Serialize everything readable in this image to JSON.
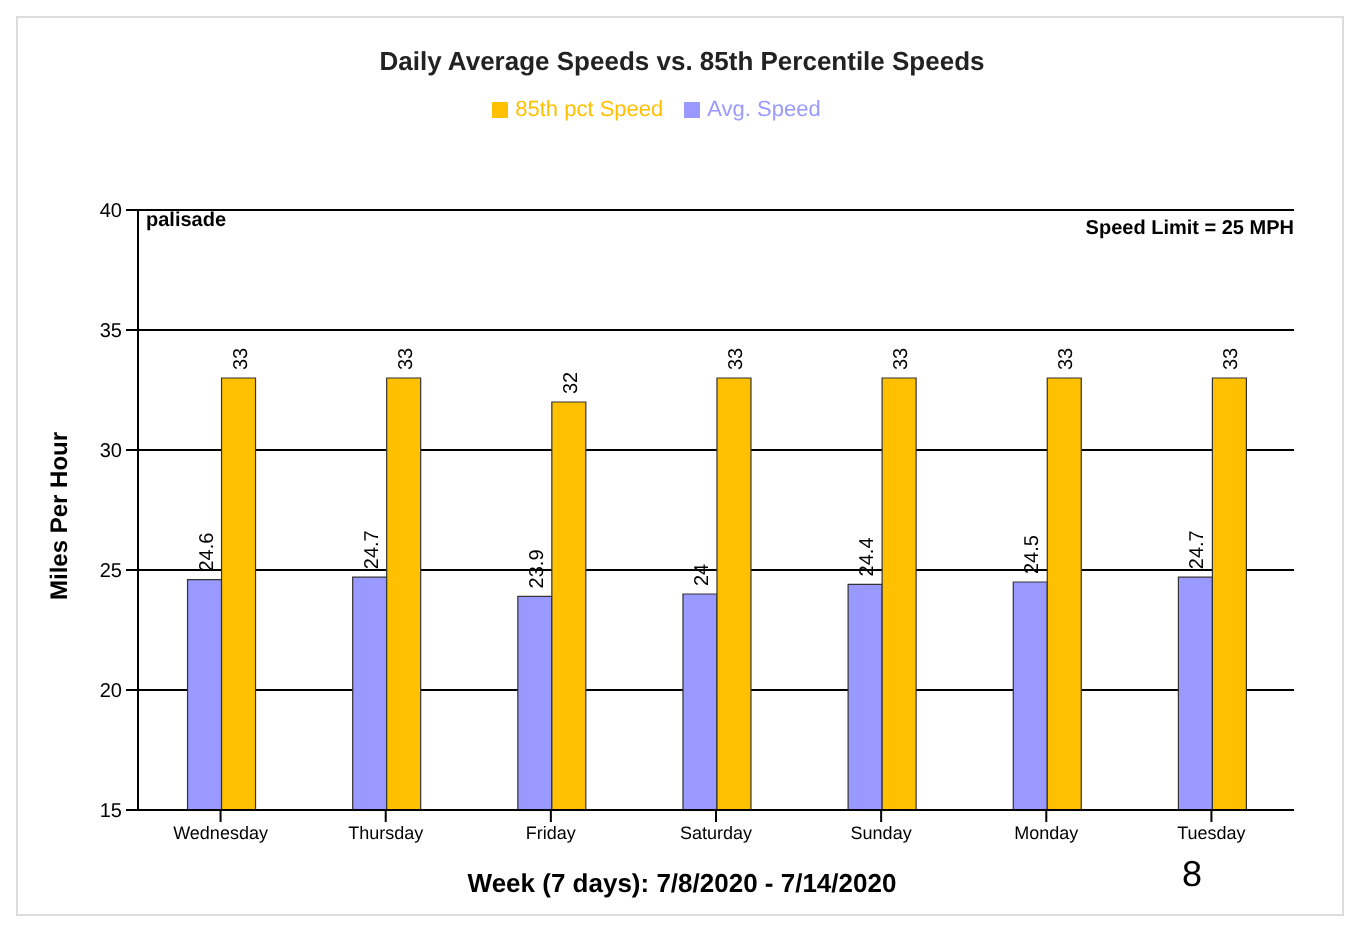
{
  "chart_data": {
    "type": "bar",
    "title": "Daily Average Speeds vs. 85th Percentile Speeds",
    "xlabel": "Week (7 days): 7/8/2020 - 7/14/2020",
    "ylabel": "Miles Per Hour",
    "annotations": [
      "palisade",
      "Speed Limit = 25 MPH",
      "8"
    ],
    "categories": [
      "Wednesday",
      "Thursday",
      "Friday",
      "Saturday",
      "Sunday",
      "Monday",
      "Tuesday"
    ],
    "series": [
      {
        "name": "Avg. Speed",
        "color": "#9999ff",
        "values": [
          24.6,
          24.7,
          23.9,
          24,
          24.4,
          24.5,
          24.7
        ]
      },
      {
        "name": "85th pct Speed",
        "color": "#ffc000",
        "values": [
          33,
          33,
          32,
          33,
          33,
          33,
          33
        ]
      }
    ],
    "ylim": [
      15,
      40
    ],
    "yticks": [
      15,
      20,
      25,
      30,
      35,
      40
    ],
    "grid": "y",
    "legend": "top",
    "data_labels": true
  }
}
